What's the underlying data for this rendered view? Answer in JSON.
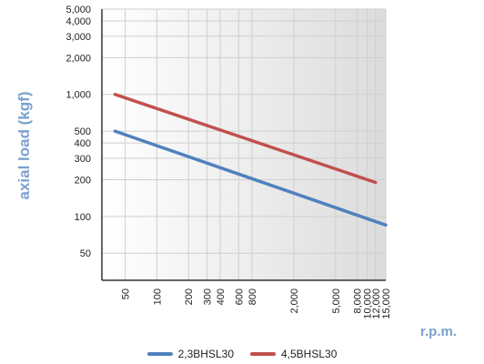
{
  "chart_data": {
    "type": "line",
    "title": "",
    "xlabel": "r.p.m.",
    "ylabel": "axial load (kgf)",
    "xscale": "log",
    "yscale": "log",
    "xlim": [
      30,
      15000
    ],
    "ylim": [
      30,
      5000
    ],
    "x_ticks": [
      50,
      100,
      200,
      300,
      400,
      600,
      800,
      2000,
      5000,
      8000,
      10000,
      12000,
      15000
    ],
    "x_tick_labels": [
      "50",
      "100",
      "200",
      "300",
      "400",
      "600",
      "800",
      "2,000",
      "5,000",
      "8,000",
      "10,000",
      "12,000",
      "15,000"
    ],
    "y_ticks": [
      50,
      100,
      200,
      300,
      400,
      500,
      1000,
      2000,
      3000,
      4000,
      5000
    ],
    "y_tick_labels": [
      "50",
      "100",
      "200",
      "300",
      "400",
      "500",
      "1,000",
      "2,000",
      "3,000",
      "4,000",
      "5,000"
    ],
    "grid": true,
    "legend_position": "bottom",
    "series": [
      {
        "name": "2,3BHSL30",
        "color": "#4f81bd",
        "x": [
          40,
          15000
        ],
        "y": [
          500,
          85
        ]
      },
      {
        "name": "4,5BHSL30",
        "color": "#c0504d",
        "x": [
          40,
          12000
        ],
        "y": [
          1000,
          190
        ]
      }
    ],
    "colors": {
      "axis_title": "#7ba1d0",
      "grid": "#cfcfcf"
    }
  }
}
